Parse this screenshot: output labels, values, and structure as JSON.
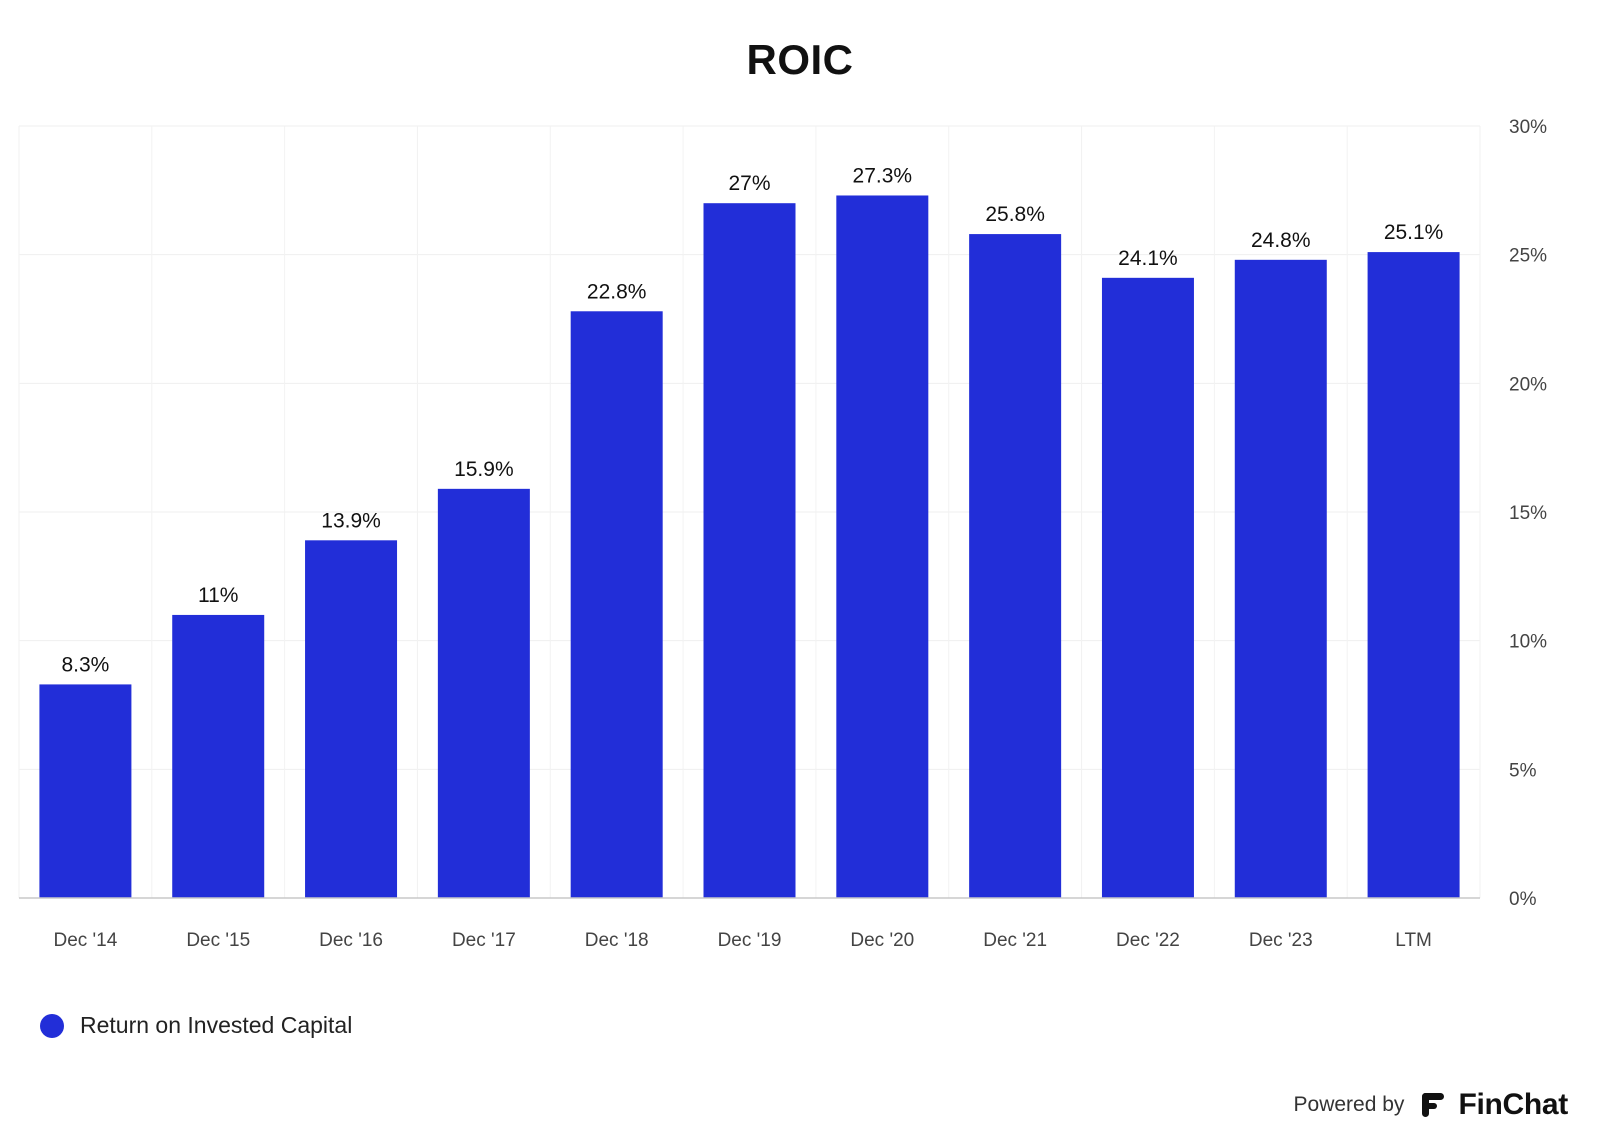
{
  "chart_data": {
    "type": "bar",
    "title": "ROIC",
    "categories": [
      "Dec '14",
      "Dec '15",
      "Dec '16",
      "Dec '17",
      "Dec '18",
      "Dec '19",
      "Dec '20",
      "Dec '21",
      "Dec '22",
      "Dec '23",
      "LTM"
    ],
    "series": [
      {
        "name": "Return on Invested Capital",
        "values": [
          8.3,
          11,
          13.9,
          15.9,
          22.8,
          27,
          27.3,
          25.8,
          24.1,
          24.8,
          25.1
        ],
        "labels": [
          "8.3%",
          "11%",
          "13.9%",
          "15.9%",
          "22.8%",
          "27%",
          "27.3%",
          "25.8%",
          "24.1%",
          "24.8%",
          "25.1%"
        ],
        "color": "#222ed8"
      }
    ],
    "ylim": [
      0,
      30
    ],
    "yticks": [
      "0%",
      "5%",
      "10%",
      "15%",
      "20%",
      "25%",
      "30%"
    ],
    "ytick_values": [
      0,
      5,
      10,
      15,
      20,
      25,
      30
    ],
    "y_axis_side": "right",
    "grid": true,
    "legend_position": "bottom-left"
  },
  "footer": {
    "powered_by": "Powered by",
    "brand": "FinChat"
  }
}
